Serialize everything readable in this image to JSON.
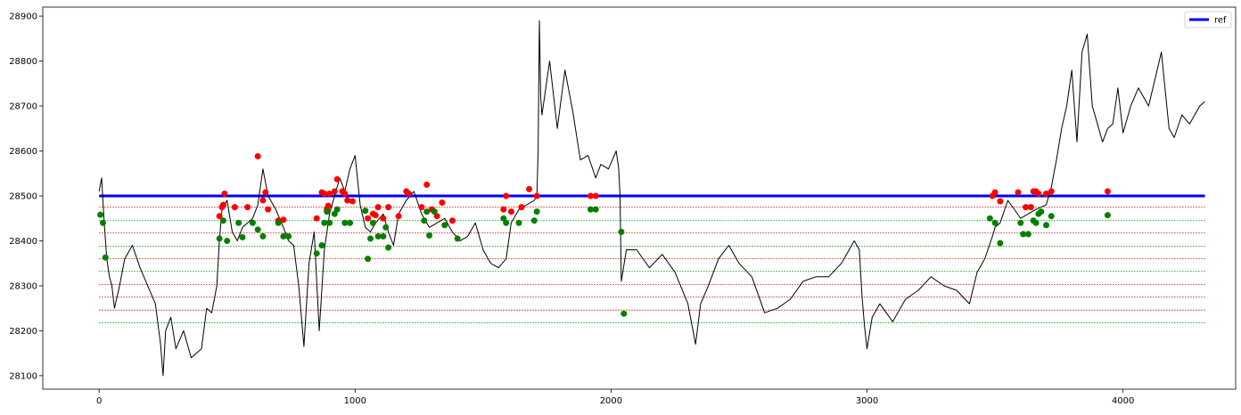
{
  "chart_data": {
    "type": "line",
    "title": "",
    "xlabel": "",
    "ylabel": "",
    "xlim": [
      -220,
      4440
    ],
    "ylim": [
      28070,
      28920
    ],
    "x_ticks": [
      0,
      1000,
      2000,
      3000,
      4000
    ],
    "y_ticks": [
      28100,
      28200,
      28300,
      28400,
      28500,
      28600,
      28700,
      28800,
      28900
    ],
    "grid": false,
    "legend": {
      "placement": "top-right",
      "entries": [
        "ref"
      ]
    },
    "colors": {
      "price": "#000000",
      "ref": "#0000ff",
      "sell": "#ff0000",
      "buy": "#008000"
    },
    "price_series": {
      "x": [
        0,
        10,
        20,
        30,
        40,
        50,
        60,
        80,
        100,
        130,
        160,
        190,
        220,
        240,
        250,
        260,
        280,
        300,
        330,
        360,
        400,
        420,
        440,
        460,
        470,
        480,
        500,
        520,
        540,
        560,
        600,
        620,
        640,
        660,
        690,
        720,
        740,
        760,
        780,
        800,
        820,
        840,
        860,
        880,
        900,
        920,
        940,
        960,
        980,
        1000,
        1020,
        1040,
        1060,
        1080,
        1110,
        1130,
        1150,
        1170,
        1200,
        1230,
        1260,
        1290,
        1320,
        1350,
        1380,
        1410,
        1440,
        1470,
        1500,
        1530,
        1560,
        1590,
        1610,
        1640,
        1670,
        1700,
        1710,
        1715,
        1720,
        1725,
        1730,
        1760,
        1790,
        1820,
        1850,
        1880,
        1910,
        1940,
        1960,
        1990,
        2020,
        2030,
        2035,
        2040,
        2060,
        2100,
        2150,
        2200,
        2250,
        2300,
        2330,
        2350,
        2380,
        2420,
        2460,
        2500,
        2550,
        2600,
        2650,
        2700,
        2750,
        2800,
        2850,
        2900,
        2950,
        2970,
        2980,
        2990,
        3000,
        3020,
        3050,
        3100,
        3150,
        3200,
        3250,
        3300,
        3350,
        3400,
        3430,
        3460,
        3490,
        3500,
        3520,
        3550,
        3600,
        3630,
        3660,
        3700,
        3720,
        3740,
        3760,
        3780,
        3800,
        3820,
        3840,
        3860,
        3880,
        3900,
        3920,
        3940,
        3960,
        3980,
        4000,
        4030,
        4060,
        4100,
        4150,
        4180,
        4200,
        4230,
        4260,
        4300,
        4320
      ],
      "y": [
        28510,
        28540,
        28440,
        28360,
        28320,
        28300,
        28250,
        28300,
        28360,
        28390,
        28340,
        28300,
        28260,
        28170,
        28100,
        28200,
        28230,
        28160,
        28200,
        28140,
        28160,
        28250,
        28240,
        28300,
        28400,
        28470,
        28490,
        28420,
        28400,
        28430,
        28450,
        28480,
        28560,
        28500,
        28470,
        28430,
        28400,
        28390,
        28300,
        28165,
        28350,
        28420,
        28200,
        28380,
        28460,
        28500,
        28540,
        28510,
        28560,
        28590,
        28480,
        28430,
        28420,
        28440,
        28460,
        28420,
        28390,
        28460,
        28490,
        28510,
        28460,
        28430,
        28440,
        28450,
        28420,
        28400,
        28410,
        28440,
        28380,
        28350,
        28340,
        28360,
        28440,
        28470,
        28480,
        28490,
        28500,
        28600,
        28890,
        28720,
        28680,
        28800,
        28650,
        28780,
        28690,
        28580,
        28590,
        28540,
        28570,
        28560,
        28600,
        28560,
        28500,
        28310,
        28380,
        28380,
        28340,
        28370,
        28330,
        28260,
        28170,
        28260,
        28300,
        28360,
        28390,
        28350,
        28320,
        28240,
        28250,
        28270,
        28310,
        28320,
        28320,
        28350,
        28400,
        28380,
        28280,
        28210,
        28160,
        28230,
        28260,
        28220,
        28270,
        28290,
        28320,
        28300,
        28290,
        28260,
        28330,
        28360,
        28410,
        28430,
        28440,
        28490,
        28450,
        28460,
        28470,
        28480,
        28520,
        28580,
        28650,
        28700,
        28780,
        28620,
        28820,
        28860,
        28700,
        28660,
        28620,
        28650,
        28660,
        28740,
        28640,
        28700,
        28740,
        28700,
        28820,
        28650,
        28630,
        28680,
        28660,
        28700,
        28710
      ]
    },
    "ref_line": {
      "label": "ref",
      "y": 28500
    },
    "level_lines": [
      {
        "y": 28475,
        "color": "#cc0000"
      },
      {
        "y": 28445,
        "color": "#008000"
      },
      {
        "y": 28418,
        "color": "#cc0000"
      },
      {
        "y": 28388,
        "color": "#008000"
      },
      {
        "y": 28360,
        "color": "#cc0000"
      },
      {
        "y": 28332,
        "color": "#008000"
      },
      {
        "y": 28303,
        "color": "#cc0000"
      },
      {
        "y": 28275,
        "color": "#cc0000"
      },
      {
        "y": 28246,
        "color": "#cc0000"
      },
      {
        "y": 28218,
        "color": "#008000"
      }
    ],
    "sell_points": {
      "x": [
        470,
        480,
        485,
        490,
        530,
        580,
        620,
        640,
        650,
        660,
        700,
        720,
        850,
        870,
        880,
        890,
        895,
        900,
        920,
        930,
        950,
        960,
        970,
        990,
        1050,
        1070,
        1080,
        1090,
        1110,
        1130,
        1170,
        1200,
        1210,
        1260,
        1280,
        1300,
        1320,
        1340,
        1380,
        1580,
        1590,
        1610,
        1650,
        1680,
        1710,
        1920,
        1940,
        3490,
        3500,
        3520,
        3590,
        3620,
        3640,
        3650,
        3660,
        3670,
        3700,
        3720,
        3940
      ],
      "y": [
        28455,
        28475,
        28480,
        28505,
        28475,
        28475,
        28588,
        28490,
        28508,
        28470,
        28445,
        28447,
        28450,
        28508,
        28505,
        28470,
        28478,
        28505,
        28510,
        28537,
        28510,
        28505,
        28490,
        28488,
        28450,
        28460,
        28457,
        28475,
        28450,
        28475,
        28455,
        28510,
        28505,
        28475,
        28525,
        28470,
        28455,
        28485,
        28445,
        28470,
        28500,
        28465,
        28475,
        28515,
        28500,
        28500,
        28500,
        28500,
        28508,
        28488,
        28508,
        28475,
        28475,
        28510,
        28510,
        28505,
        28505,
        28510,
        28510
      ]
    },
    "buy_points": {
      "x": [
        5,
        15,
        25,
        470,
        485,
        500,
        545,
        560,
        600,
        620,
        640,
        700,
        720,
        740,
        850,
        870,
        880,
        890,
        900,
        920,
        930,
        960,
        980,
        1040,
        1050,
        1060,
        1070,
        1090,
        1110,
        1120,
        1130,
        1270,
        1280,
        1290,
        1310,
        1350,
        1400,
        1580,
        1590,
        1640,
        1700,
        1710,
        1920,
        1940,
        2040,
        2050,
        3480,
        3500,
        3520,
        3600,
        3610,
        3630,
        3650,
        3660,
        3670,
        3680,
        3700,
        3720,
        3940
      ],
      "y": [
        28458,
        28440,
        28363,
        28405,
        28445,
        28400,
        28440,
        28408,
        28440,
        28425,
        28410,
        28440,
        28410,
        28410,
        28372,
        28390,
        28440,
        28465,
        28440,
        28460,
        28470,
        28440,
        28440,
        28467,
        28360,
        28405,
        28440,
        28410,
        28410,
        28430,
        28385,
        28445,
        28465,
        28412,
        28465,
        28435,
        28405,
        28450,
        28440,
        28440,
        28445,
        28465,
        28470,
        28470,
        28420,
        28238,
        28450,
        28440,
        28395,
        28440,
        28415,
        28415,
        28445,
        28440,
        28460,
        28465,
        28435,
        28455,
        28457
      ]
    }
  }
}
